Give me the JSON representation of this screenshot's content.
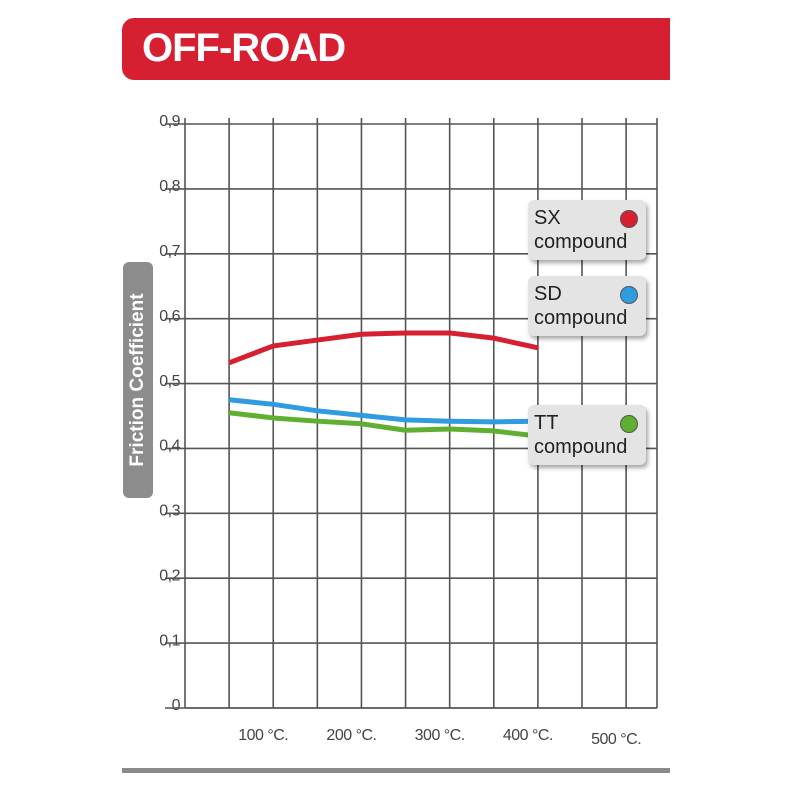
{
  "chart_data": {
    "type": "line",
    "title": "OFF-ROAD",
    "ylabel": "Friction Coefficient",
    "x": [
      50,
      100,
      150,
      200,
      250,
      300,
      350,
      400
    ],
    "series": [
      {
        "name": "SX compound",
        "color": "#d71f32",
        "values": [
          0.532,
          0.558,
          0.567,
          0.576,
          0.578,
          0.578,
          0.57,
          0.555
        ]
      },
      {
        "name": "SD compound",
        "color": "#2f9be0",
        "values": [
          0.475,
          0.468,
          0.458,
          0.451,
          0.444,
          0.442,
          0.441,
          0.442
        ]
      },
      {
        "name": "TT compound",
        "color": "#5fb030",
        "values": [
          0.455,
          0.447,
          0.442,
          0.438,
          0.428,
          0.43,
          0.427,
          0.419
        ]
      }
    ],
    "xlim": [
      0,
      535
    ],
    "xticks": [
      {
        "value": 100,
        "label": "100 °C."
      },
      {
        "value": 200,
        "label": "200 °C."
      },
      {
        "value": 300,
        "label": "300 °C."
      },
      {
        "value": 400,
        "label": "400 °C."
      },
      {
        "value": 500,
        "label": "500 °C."
      }
    ],
    "xminor": [
      50,
      150,
      250,
      350,
      450
    ],
    "ylim": [
      0,
      0.9
    ],
    "yticks": [
      0,
      {
        "value": 0.1,
        "label": "0,1"
      },
      {
        "value": 0.2,
        "label": "0,2"
      },
      {
        "value": 0.3,
        "label": "0,3"
      },
      {
        "value": 0.4,
        "label": "0,4"
      },
      {
        "value": 0.5,
        "label": "0,5"
      },
      {
        "value": 0.6,
        "label": "0,6"
      },
      {
        "value": 0.7,
        "label": "0,7"
      },
      {
        "value": 0.8,
        "label": "0,8"
      },
      {
        "value": 0.9,
        "label": "0,9"
      }
    ],
    "grid": true
  }
}
